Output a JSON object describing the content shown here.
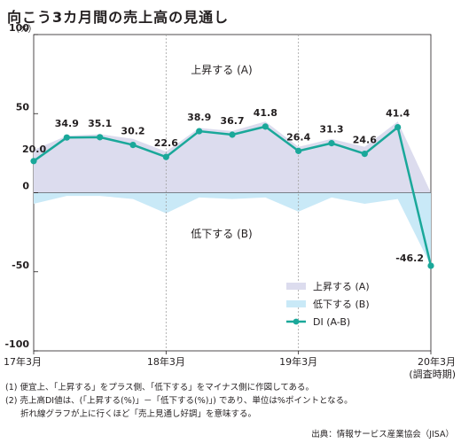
{
  "title": "向こう3カ月間の売上高の見通し",
  "unit": "（%）",
  "notes": [
    "(1) 便宜上、「上昇する」をプラス側、「低下する」をマイナス側に作図してある。",
    "(2) 売上高DI値は、(「上昇する(%)」－「低下する(%)」) であり、単位は%ポイントとなる。",
    "折れ線グラフが上に行くほど「売上見通し好調」を意味する。"
  ],
  "source": "出典：情報サービス産業協会（JISA）",
  "chart_data": {
    "type": "area",
    "y_ticks": [
      "100",
      "50",
      "0",
      "-50",
      "-100"
    ],
    "ylim": [
      -100,
      100
    ],
    "x_labels": [
      {
        "index": 0,
        "label": "17年3月"
      },
      {
        "index": 4,
        "label": "18年3月"
      },
      {
        "index": 8,
        "label": "19年3月"
      },
      {
        "index": 12,
        "label": "20年3月"
      }
    ],
    "x_label_sub": "(調査時期)",
    "region_labels": {
      "up": "上昇する (A)",
      "down": "低下する (B)"
    },
    "series": [
      {
        "name": "上昇する (A)",
        "kind": "area",
        "color": "#dcdcee",
        "values": [
          27,
          36,
          37,
          34,
          26,
          41,
          39,
          45,
          29,
          34,
          29,
          45,
          0
        ]
      },
      {
        "name": "低下する (B)",
        "kind": "area",
        "color": "#c9e9f7",
        "values": [
          -7,
          -2,
          -2,
          -4,
          -13,
          -3,
          -4,
          -3,
          -12,
          -3,
          -7,
          -4,
          -46.2
        ]
      },
      {
        "name": "DI (A-B)",
        "kind": "line",
        "color": "#1aa89a",
        "values": [
          20.0,
          34.9,
          35.1,
          30.2,
          22.6,
          38.9,
          36.7,
          41.8,
          26.4,
          31.3,
          24.6,
          41.4,
          -46.2
        ],
        "labels": [
          "20.0",
          "34.9",
          "35.1",
          "30.2",
          "22.6",
          "38.9",
          "36.7",
          "41.8",
          "26.4",
          "31.3",
          "24.6",
          "41.4",
          "-46.2"
        ]
      }
    ],
    "legend": [
      {
        "label": "上昇する (A)",
        "symbol": "area",
        "color": "#dcdcee"
      },
      {
        "label": "低下する (B)",
        "symbol": "area",
        "color": "#c9e9f7"
      },
      {
        "label": "DI (A-B)",
        "symbol": "line",
        "color": "#1aa89a"
      }
    ],
    "legend_position": "bottom-right",
    "grid": "vertical dashed at year marks"
  }
}
